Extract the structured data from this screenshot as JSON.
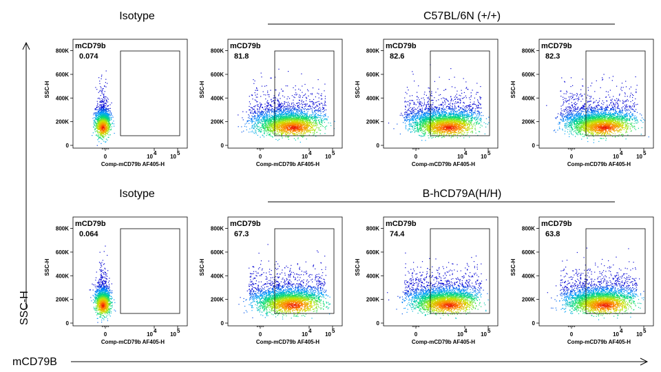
{
  "figure": {
    "x_axis_label": "mCD79B",
    "y_axis_label": "SSC-H"
  },
  "chart_data": [
    {
      "type": "scatter",
      "row": 1,
      "group_headers": [
        {
          "label": "Isotype",
          "spans": [
            1
          ]
        },
        {
          "label": "C57BL/6N (+/+)",
          "spans": [
            2,
            3,
            4
          ],
          "underline": true
        }
      ],
      "panels": [
        {
          "gate_name": "mCD79b",
          "gate_value": "0.074",
          "population": "isotype"
        },
        {
          "gate_name": "mCD79b",
          "gate_value": "81.8",
          "population": "positive"
        },
        {
          "gate_name": "mCD79b",
          "gate_value": "82.6",
          "population": "positive"
        },
        {
          "gate_name": "mCD79b",
          "gate_value": "82.3",
          "population": "positive"
        }
      ],
      "xlabel": "Comp-mCD79b AF405-H",
      "ylabel": "SSC-H",
      "x_scale": "biexponential",
      "x_ticks": [
        "0",
        "10^4",
        "10^5"
      ],
      "y_ticks": [
        "0",
        "200K",
        "400K",
        "600K",
        "800K"
      ],
      "ylim": [
        0,
        850000
      ]
    },
    {
      "type": "scatter",
      "row": 2,
      "group_headers": [
        {
          "label": "Isotype",
          "spans": [
            1
          ]
        },
        {
          "label": "B-hCD79A(H/H)",
          "spans": [
            2,
            3,
            4
          ],
          "underline": true
        }
      ],
      "panels": [
        {
          "gate_name": "mCD79b",
          "gate_value": "0.064",
          "population": "isotype"
        },
        {
          "gate_name": "mCD79b",
          "gate_value": "67.3",
          "population": "positive"
        },
        {
          "gate_name": "mCD79b",
          "gate_value": "74.4",
          "population": "positive"
        },
        {
          "gate_name": "mCD79b",
          "gate_value": "63.8",
          "population": "positive"
        }
      ],
      "xlabel": "Comp-mCD79b AF405-H",
      "ylabel": "SSC-H",
      "x_scale": "biexponential",
      "x_ticks": [
        "0",
        "10^4",
        "10^5"
      ],
      "y_ticks": [
        "0",
        "200K",
        "400K",
        "600K",
        "800K"
      ],
      "ylim": [
        0,
        850000
      ]
    }
  ]
}
